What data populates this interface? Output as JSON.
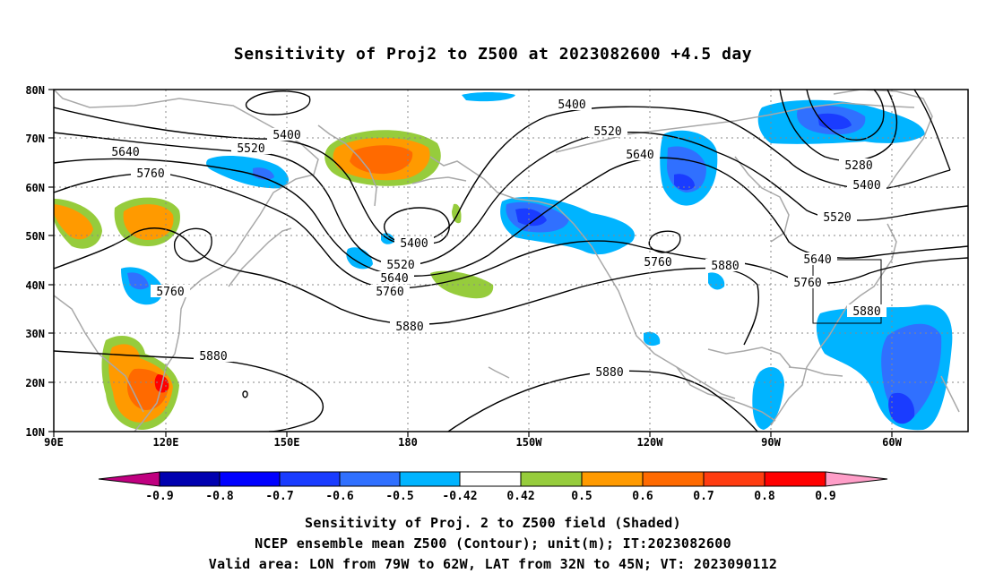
{
  "title": "Sensitivity of Proj2 to Z500 at 2023082600 +4.5 day",
  "lat_labels": [
    "80N",
    "70N",
    "60N",
    "50N",
    "40N",
    "30N",
    "20N",
    "10N"
  ],
  "lon_labels": [
    "90E",
    "120E",
    "150E",
    "180",
    "150W",
    "120W",
    "90W",
    "60W"
  ],
  "contour_labels": [
    "5400",
    "5520",
    "5640",
    "5760",
    "5880",
    "5400",
    "5520",
    "5640",
    "5760",
    "5280",
    "5400",
    "5520",
    "5640",
    "5760",
    "5880",
    "5400",
    "5520",
    "5640",
    "5760",
    "5880",
    "5640",
    "5760",
    "5880",
    "5760",
    "5880",
    "5880"
  ],
  "colorbar": {
    "labels": [
      "-0.9",
      "-0.8",
      "-0.7",
      "-0.6",
      "-0.5",
      "-0.42",
      "0.42",
      "0.5",
      "0.6",
      "0.7",
      "0.8",
      "0.9"
    ],
    "colors": [
      "#c00080",
      "#0000b0",
      "#0000ff",
      "#1a3cff",
      "#3070ff",
      "#00b4ff",
      "#ffffff",
      "#96cc3c",
      "#ff9a00",
      "#ff6a00",
      "#ff3c10",
      "#ff0000",
      "#ff9ec8"
    ]
  },
  "captions": [
    "Sensitivity of Proj. 2 to Z500 field (Shaded)",
    "NCEP ensemble mean Z500 (Contour); unit(m); IT:2023082600",
    "Valid area: LON from 79W to 62W, LAT from 32N to 45N; VT: 2023090112"
  ]
}
